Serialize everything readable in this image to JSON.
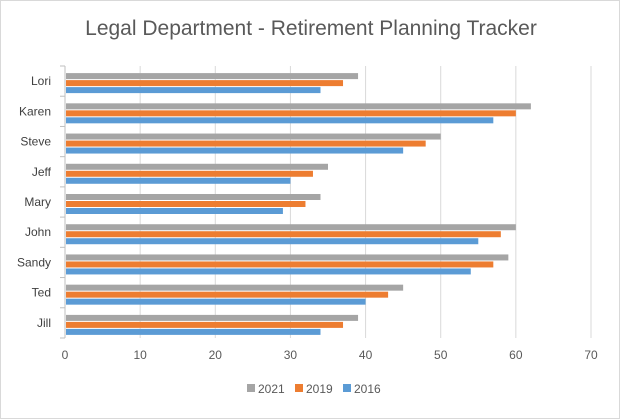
{
  "chart_data": {
    "type": "bar",
    "orientation": "horizontal",
    "title": "Legal Department - Retirement Planning Tracker",
    "categories": [
      "Lori",
      "Karen",
      "Steve",
      "Jeff",
      "Mary",
      "John",
      "Sandy",
      "Ted",
      "Jill"
    ],
    "series": [
      {
        "name": "2021",
        "color": "#a5a5a5",
        "values": [
          39,
          62,
          50,
          35,
          34,
          60,
          59,
          45,
          39
        ]
      },
      {
        "name": "2019",
        "color": "#ed7d31",
        "values": [
          37,
          60,
          48,
          33,
          32,
          58,
          57,
          43,
          37
        ]
      },
      {
        "name": "2016",
        "color": "#5b9bd5",
        "values": [
          34,
          57,
          45,
          30,
          29,
          55,
          54,
          40,
          34
        ]
      }
    ],
    "xlim": [
      0,
      70
    ],
    "xticks": [
      0,
      10,
      20,
      30,
      40,
      50,
      60,
      70
    ],
    "xlabel": "",
    "ylabel": "",
    "grid": true,
    "legend_position": "bottom"
  }
}
